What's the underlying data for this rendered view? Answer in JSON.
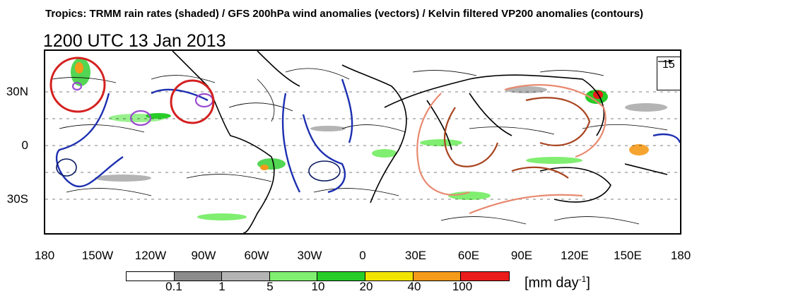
{
  "header": {
    "title": "Tropics: TRMM rain rates (shaded) / GFS 200hPa wind anomalies (vectors) / Kelvin filtered VP200 anomalies (contours)",
    "timestamp": "1200 UTC 13 Jan 2013"
  },
  "map": {
    "lat_labels": [
      "30N",
      "0",
      "30S"
    ],
    "lon_labels": [
      "180",
      "150W",
      "120W",
      "90W",
      "60W",
      "30W",
      "0",
      "30E",
      "60E",
      "90E",
      "120E",
      "150E",
      "180"
    ],
    "reference_vector": {
      "label": "15"
    },
    "highlight_circles": 2
  },
  "colorbar": {
    "ticks": [
      "0.1",
      "1",
      "5",
      "10",
      "20",
      "40",
      "100"
    ],
    "colors": [
      "#ffffff",
      "#8c8c8c",
      "#b4b4b4",
      "#80ee70",
      "#28cc28",
      "#f2e400",
      "#f59a1a",
      "#ea1c1c"
    ],
    "units": "[mm day",
    "units_exp": "-1",
    "units_close": "]"
  }
}
